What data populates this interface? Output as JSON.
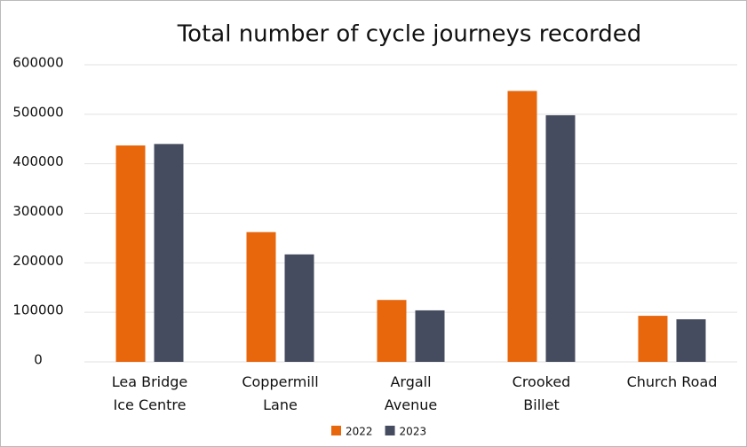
{
  "chart_data": {
    "type": "bar",
    "title": "Total number of cycle journeys recorded",
    "categories": [
      "Lea Bridge\nIce Centre",
      "Coppermill\nLane",
      "Argall\nAvenue",
      "Crooked\nBillet",
      "Church Road"
    ],
    "series": [
      {
        "name": "2022",
        "color": "#e8660c",
        "values": [
          437000,
          262000,
          125000,
          547000,
          93000
        ]
      },
      {
        "name": "2023",
        "color": "#464c5f",
        "values": [
          440000,
          217000,
          104000,
          498000,
          86000
        ]
      }
    ],
    "ylim": [
      0,
      600000
    ],
    "yticks": [
      0,
      100000,
      200000,
      300000,
      400000,
      500000,
      600000
    ],
    "grid": true,
    "legend": "bottom"
  }
}
